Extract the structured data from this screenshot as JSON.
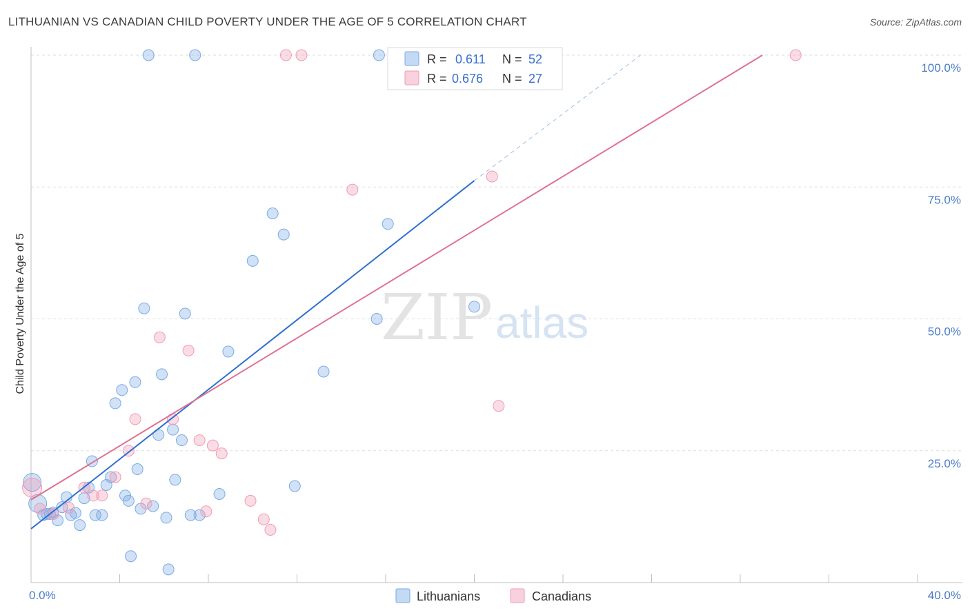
{
  "header": {
    "title": "LITHUANIAN VS CANADIAN CHILD POVERTY UNDER THE AGE OF 5 CORRELATION CHART",
    "source": "Source: ZipAtlas.com"
  },
  "watermark": {
    "zip": "ZIP",
    "atlas": "atlas"
  },
  "legend": {
    "r_label": "R =",
    "n_label": "N =",
    "series": [
      {
        "name": "Lithuanians",
        "r": "0.611",
        "n": "52",
        "color": "#7aaae6"
      },
      {
        "name": "Canadians",
        "r": "0.676",
        "n": "27",
        "color": "#f29ab5"
      }
    ]
  },
  "chart_data": {
    "type": "scatter",
    "ylabel": "Child Poverty Under the Age of 5",
    "x_tick_labels": [
      "0.0%",
      "40.0%"
    ],
    "y_tick_labels": [
      "25.0%",
      "50.0%",
      "75.0%",
      "100.0%"
    ],
    "xlim": [
      0,
      40
    ],
    "ylim": [
      0,
      100
    ],
    "grid": true,
    "legend_position": "top-center",
    "series": [
      {
        "name": "Lithuanians",
        "color": "#7aaae6",
        "line_color": "#2e6fd0",
        "trend": {
          "x": [
            0,
            20
          ],
          "y": [
            10.2,
            76.2
          ]
        },
        "trend_dashed": {
          "x": [
            20,
            27.5
          ],
          "y": [
            76.2,
            100
          ]
        },
        "x": [
          0.05,
          0.3,
          0.55,
          0.7,
          0.85,
          1.0,
          1.2,
          1.4,
          1.6,
          1.8,
          2.0,
          2.2,
          2.4,
          2.6,
          2.75,
          2.9,
          3.2,
          3.4,
          3.6,
          3.8,
          4.1,
          4.25,
          4.4,
          4.5,
          4.7,
          4.8,
          4.95,
          5.1,
          5.3,
          5.5,
          5.75,
          5.9,
          6.1,
          6.2,
          6.4,
          6.5,
          6.8,
          6.95,
          7.2,
          7.4,
          7.6,
          8.5,
          8.9,
          10.0,
          10.9,
          11.4,
          11.9,
          13.2,
          15.6,
          15.7,
          16.1,
          20.0
        ],
        "y": [
          19.0,
          15.0,
          12.8,
          13.0,
          13.0,
          13.3,
          11.8,
          14.3,
          16.2,
          12.8,
          13.2,
          10.9,
          16.0,
          18.0,
          23.0,
          12.8,
          12.8,
          18.5,
          20.0,
          34.0,
          36.5,
          16.5,
          15.5,
          5.0,
          38.0,
          21.5,
          14.0,
          52.0,
          100.0,
          14.5,
          28.0,
          39.5,
          12.3,
          2.5,
          29.0,
          19.5,
          27.0,
          51.0,
          12.8,
          100.0,
          12.8,
          16.8,
          43.8,
          61.0,
          70.0,
          66.0,
          18.3,
          40.0,
          50.0,
          100.0,
          68.0,
          52.3
        ]
      },
      {
        "name": "Canadians",
        "color": "#f29ab5",
        "line_color": "#e0708f",
        "trend": {
          "x": [
            0,
            33
          ],
          "y": [
            15.7,
            100
          ]
        },
        "x": [
          0.05,
          0.4,
          1.0,
          1.7,
          2.4,
          2.8,
          3.2,
          3.8,
          4.4,
          4.7,
          5.2,
          5.8,
          6.4,
          7.1,
          7.6,
          7.9,
          8.2,
          8.6,
          9.9,
          10.5,
          10.8,
          11.5,
          12.2,
          14.5,
          20.8,
          21.1,
          34.5
        ],
        "y": [
          18.0,
          14.0,
          13.0,
          14.2,
          18.0,
          16.5,
          16.5,
          20.0,
          25.0,
          31.0,
          15.0,
          46.5,
          31.0,
          44.0,
          27.0,
          13.5,
          26.0,
          24.5,
          15.5,
          12.0,
          10.0,
          100.0,
          100.0,
          74.5,
          77.0,
          33.5,
          100.0
        ]
      }
    ]
  }
}
